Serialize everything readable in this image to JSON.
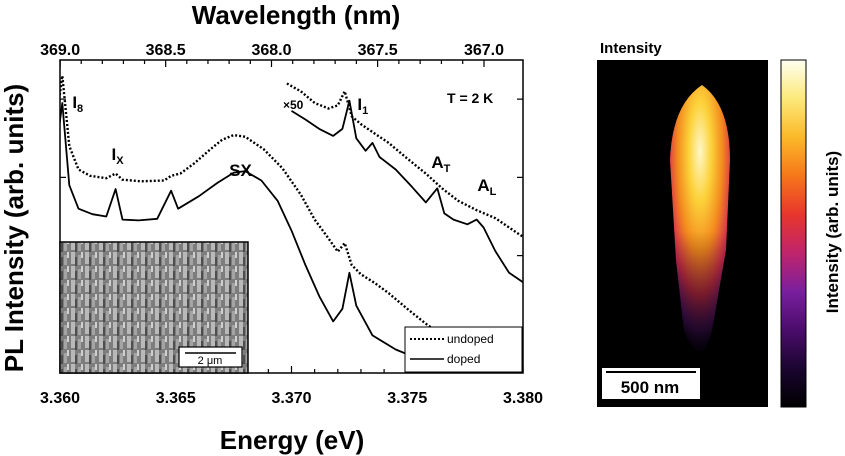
{
  "chart_data": [
    {
      "type": "line",
      "xlabel": "Energy (eV)",
      "ylabel": "PL Intensity (arb. units)",
      "x2label": "Wavelength (nm)",
      "xlim": [
        3.36,
        3.38
      ],
      "x_ticks": [
        "3.360",
        "3.365",
        "3.370",
        "3.375",
        "3.380"
      ],
      "x2_ticks": [
        "369.0",
        "368.5",
        "368.0",
        "367.5",
        "367.0"
      ],
      "y_scale": "log",
      "y_tick_labels_shown": false,
      "annotations": {
        "temperature": "T = 2 K",
        "scale_factor": "×50",
        "peaks": [
          {
            "label": "I",
            "sub": "8",
            "energy": 3.3601
          },
          {
            "label": "I",
            "sub": "X",
            "energy": 3.3624
          },
          {
            "label": "SX",
            "sub": "",
            "energy": 3.3678
          },
          {
            "label": "I",
            "sub": "1",
            "energy": 3.3725
          },
          {
            "label": "A",
            "sub": "T",
            "energy": 3.3763
          },
          {
            "label": "A",
            "sub": "L",
            "energy": 3.3782
          }
        ]
      },
      "legend": {
        "placement": "bottom-right"
      },
      "inset": {
        "type": "image",
        "scale_bar": "2 μm"
      },
      "series": [
        {
          "name": "undoped",
          "style": "dotted",
          "color": "#000000",
          "segments": [
            {
              "x": [
                3.3599,
                3.3601,
                3.3604,
                3.3608,
                3.3613,
                3.362,
                3.3624,
                3.3627,
                3.3635,
                3.3645,
                3.3648,
                3.3652,
                3.3658,
                3.3665,
                3.367,
                3.3675,
                3.368,
                3.3688,
                3.3696,
                3.3704,
                3.371,
                3.3716,
                3.372,
                3.3723,
                3.3726,
                3.373,
                3.3736,
                3.3742,
                3.375,
                3.3758,
                3.3765,
                3.3772,
                3.378,
                3.3788,
                3.3796,
                3.38
              ],
              "y": [
                3.35,
                3.8,
                2.9,
                2.6,
                2.52,
                2.49,
                2.55,
                2.47,
                2.45,
                2.46,
                2.52,
                2.55,
                2.68,
                2.86,
                2.98,
                3.04,
                3.02,
                2.86,
                2.62,
                2.28,
                1.96,
                1.72,
                1.55,
                1.66,
                1.38,
                1.26,
                1.15,
                1.02,
                0.82,
                0.63,
                0.48,
                0.36,
                0.26,
                0.2,
                0.16,
                0.14
              ]
            },
            {
              "x": [
                3.3698,
                3.3704,
                3.371,
                3.3716,
                3.372,
                3.3723,
                3.3726,
                3.373,
                3.3736,
                3.3742,
                3.375,
                3.3758,
                3.3765,
                3.3772,
                3.378,
                3.3788,
                3.3796,
                3.38
              ],
              "y": [
                3.7,
                3.6,
                3.45,
                3.38,
                3.42,
                3.6,
                3.28,
                3.18,
                3.06,
                2.94,
                2.74,
                2.55,
                2.36,
                2.2,
                2.08,
                1.98,
                1.82,
                1.74
              ]
            }
          ]
        },
        {
          "name": "doped",
          "style": "solid",
          "color": "#000000",
          "segments": [
            {
              "x": [
                3.3596,
                3.3599,
                3.3601,
                3.3604,
                3.3608,
                3.3614,
                3.362,
                3.3624,
                3.3627,
                3.3634,
                3.3642,
                3.3648,
                3.3651,
                3.366,
                3.3668,
                3.3675,
                3.368,
                3.3687,
                3.3694,
                3.37,
                3.3706,
                3.3712,
                3.3718,
                3.3722,
                3.3725,
                3.3728,
                3.3735,
                3.3745,
                3.3755,
                3.3765,
                3.3775,
                3.378,
                3.379,
                3.38
              ],
              "y": [
                2.4,
                3.0,
                3.45,
                2.4,
                2.1,
                2.03,
                2.0,
                2.35,
                1.96,
                1.95,
                1.97,
                2.33,
                2.1,
                2.26,
                2.43,
                2.56,
                2.58,
                2.46,
                2.2,
                1.82,
                1.38,
                0.98,
                0.66,
                0.82,
                1.28,
                0.86,
                0.48,
                0.3,
                0.18,
                0.1,
                0.06,
                0.05,
                0.04,
                0.04
              ]
            },
            {
              "x": [
                3.37,
                3.3706,
                3.3712,
                3.3718,
                3.3722,
                3.3725,
                3.3728,
                3.3732,
                3.3735,
                3.3738,
                3.3745,
                3.3752,
                3.3758,
                3.3763,
                3.3766,
                3.377,
                3.3776,
                3.378,
                3.3783,
                3.3788,
                3.3794,
                3.38
              ],
              "y": [
                3.35,
                3.24,
                3.12,
                3.03,
                3.12,
                3.48,
                3.0,
                2.84,
                2.94,
                2.76,
                2.6,
                2.38,
                2.18,
                2.36,
                2.04,
                1.96,
                1.9,
                1.96,
                1.86,
                1.56,
                1.28,
                1.16
              ]
            }
          ]
        }
      ]
    },
    {
      "type": "heatmap",
      "title": "Intensity",
      "colorbar_label": "Intensity (arb. units)",
      "colormap": [
        "#000000",
        "#1a0530",
        "#4b0c6b",
        "#7a1f9e",
        "#c0246b",
        "#e8362c",
        "#f6771a",
        "#fbb929",
        "#fce97a",
        "#fffff0"
      ],
      "scale_bar": "500 nm"
    }
  ]
}
